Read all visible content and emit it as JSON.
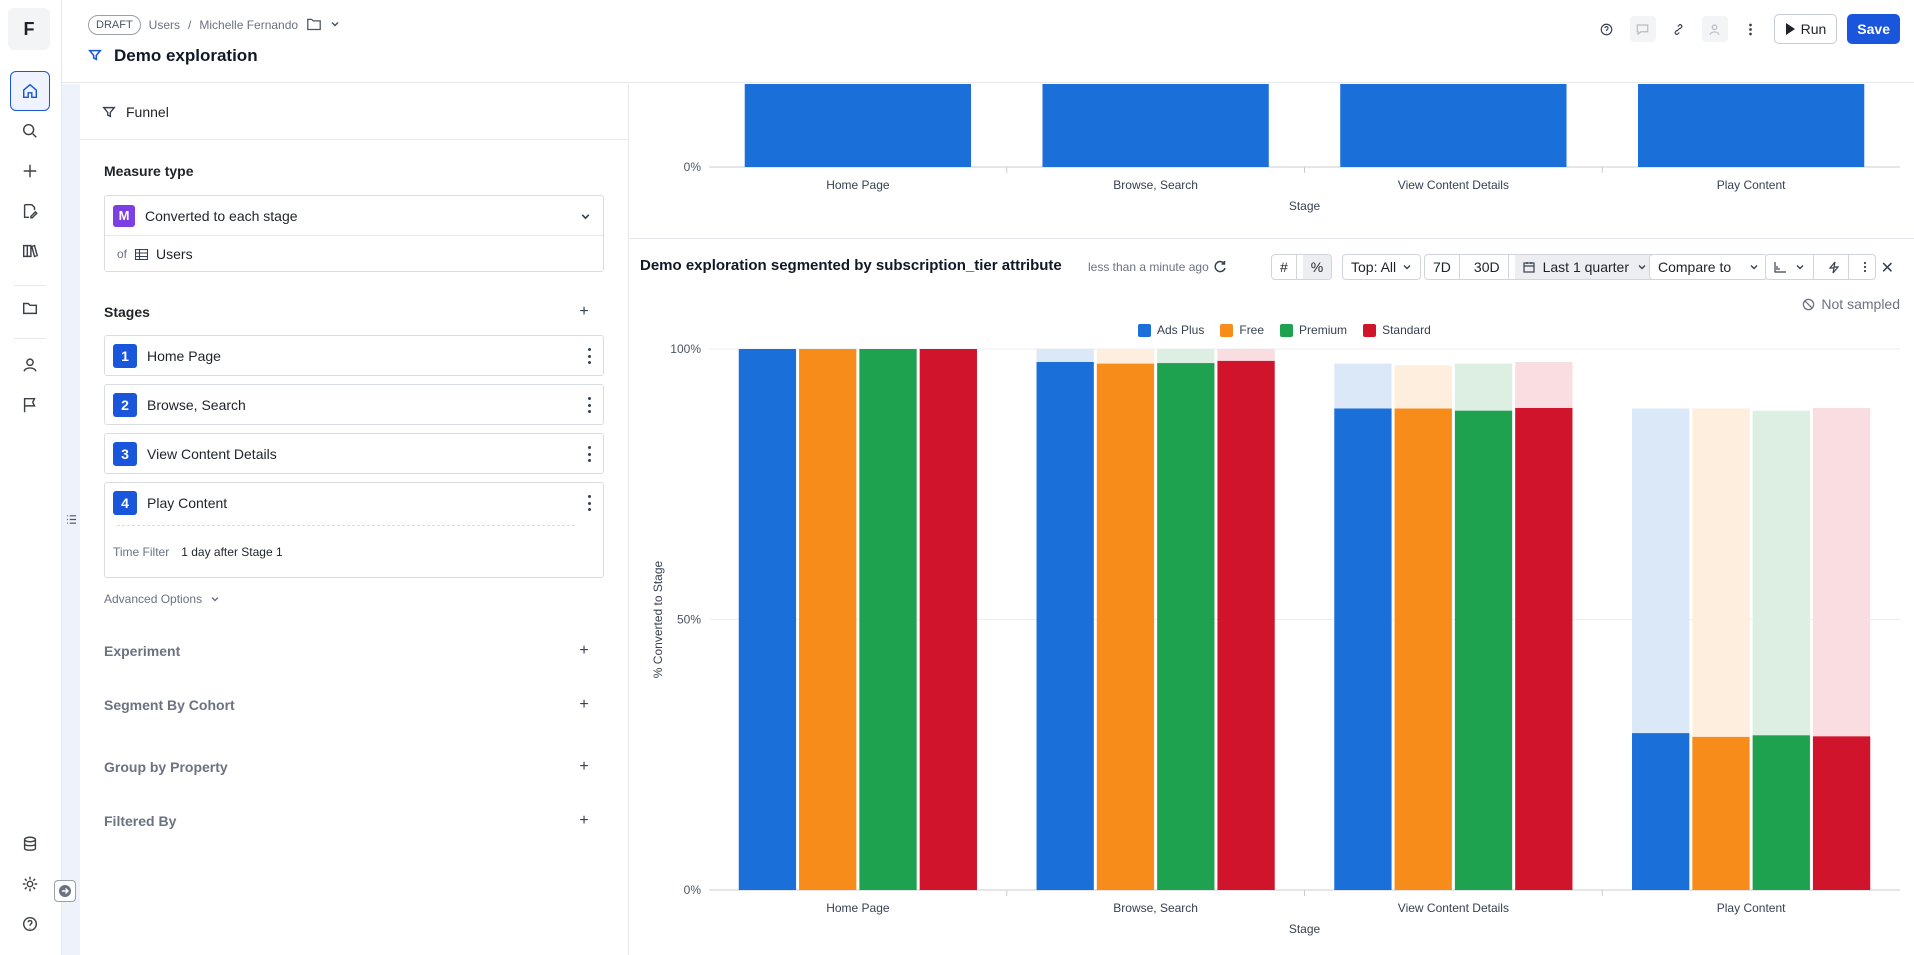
{
  "app": {
    "logo": "F"
  },
  "rail": {
    "items": [
      {
        "name": "home-icon",
        "active": true
      },
      {
        "name": "search-icon"
      },
      {
        "name": "plus-icon"
      },
      {
        "name": "edit-icon"
      },
      {
        "name": "books-icon"
      },
      {
        "name": "folder-icon"
      },
      {
        "name": "user-icon"
      },
      {
        "name": "flag-icon"
      }
    ],
    "bottom": [
      "database-icon",
      "gear-icon",
      "help-icon"
    ]
  },
  "header": {
    "draft": "DRAFT",
    "crumb_users": "Users",
    "crumb_sep": "/",
    "crumb_user": "Michelle Fernando",
    "title": "Demo exploration",
    "run_label": "Run",
    "save_label": "Save"
  },
  "panel": {
    "funnel_label": "Funnel",
    "measure_type_label": "Measure type",
    "measure_badge": "M",
    "measure_value": "Converted to each stage",
    "of_label": "of",
    "of_value": "Users",
    "stages_label": "Stages",
    "stages": [
      {
        "num": "1",
        "label": "Home Page"
      },
      {
        "num": "2",
        "label": "Browse, Search"
      },
      {
        "num": "3",
        "label": "View Content Details"
      },
      {
        "num": "4",
        "label": "Play Content"
      }
    ],
    "time_filter_label": "Time Filter",
    "time_filter_value": "1 day after Stage 1",
    "advanced_options": "Advanced Options",
    "experiment": "Experiment",
    "segment_by_cohort": "Segment By Cohort",
    "group_by_property": "Group by Property",
    "filtered_by": "Filtered By"
  },
  "chart_header": {
    "title": "Demo exploration segmented by subscription_tier attribute",
    "updated": "less than a minute ago",
    "top": "Top: All",
    "d7": "7D",
    "d30": "30D",
    "range": "Last 1 quarter",
    "compare": "Compare to",
    "not_sampled": "Not sampled"
  },
  "colors": {
    "Ads Plus": "#1a6fd8",
    "Free": "#f78c1b",
    "Premium": "#1ea24f",
    "Standard": "#d0142b"
  },
  "chart_data": [
    {
      "type": "bar",
      "title": "",
      "categories": [
        "Home Page",
        "Browse, Search",
        "View Content Details",
        "Play Content"
      ],
      "values": [
        100,
        100,
        100,
        100
      ],
      "xlabel": "Stage",
      "ylabel": "",
      "yticks": [
        "0%"
      ],
      "note": "partially visible, scrolled"
    },
    {
      "type": "bar",
      "title": "Demo exploration segmented by subscription_tier attribute",
      "categories": [
        "Home Page",
        "Browse, Search",
        "View Content Details",
        "Play Content"
      ],
      "xlabel": "Stage",
      "ylabel": "% Converted to Stage",
      "ylim": [
        0,
        100
      ],
      "yticks": [
        "0%",
        "50%",
        "100%"
      ],
      "legend": [
        "Ads Plus",
        "Free",
        "Premium",
        "Standard"
      ],
      "series": [
        {
          "name": "Ads Plus",
          "values": [
            100,
            97.6,
            89.0,
            29.0
          ],
          "previous": [
            100,
            100,
            97.3,
            89.0
          ]
        },
        {
          "name": "Free",
          "values": [
            100,
            97.3,
            89.0,
            28.3
          ],
          "previous": [
            100,
            100,
            97.0,
            89.0
          ]
        },
        {
          "name": "Premium",
          "values": [
            100,
            97.4,
            88.6,
            28.6
          ],
          "previous": [
            100,
            100,
            97.3,
            88.6
          ]
        },
        {
          "name": "Standard",
          "values": [
            100,
            97.8,
            89.1,
            28.4
          ],
          "previous": [
            100,
            100,
            97.6,
            89.1
          ]
        }
      ]
    }
  ]
}
